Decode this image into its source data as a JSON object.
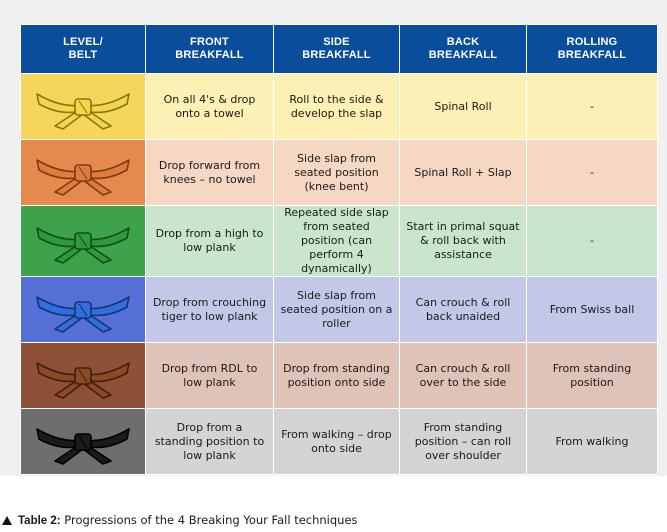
{
  "table": {
    "headers": [
      "LEVEL/\nBELT",
      "FRONT\nBREAKFALL",
      "SIDE\nBREAKFALL",
      "BACK\nBREAKFALL",
      "ROLLING\nBREAKFALL"
    ],
    "rows": [
      {
        "belt": {
          "name": "yellow-belt-icon",
          "fill": "#f2d74a",
          "stroke": "#8a7417"
        },
        "bg": "#fdf0b4",
        "cells": [
          "On all 4's & drop onto a towel",
          "Roll to the side & develop the slap",
          "Spinal Roll",
          "-"
        ]
      },
      {
        "belt": {
          "name": "orange-belt-icon",
          "fill": "#e27a3a",
          "stroke": "#7a3c15"
        },
        "bg": "#f6d7c2",
        "cells": [
          "Drop forward from knees – no towel",
          "Side slap from seated position (knee bent)",
          "Spinal Roll + Slap",
          "-"
        ]
      },
      {
        "belt": {
          "name": "green-belt-icon",
          "fill": "#2f9a3a",
          "stroke": "#144d1a"
        },
        "bg": "#c9e6cc",
        "cells": [
          "Drop from a high to low plank",
          "Repeated side slap from seated position (can perform 4 dynamically)",
          "Start in primal squat & roll back with assistance",
          "-"
        ]
      },
      {
        "belt": {
          "name": "blue-belt-icon",
          "fill": "#2f6fe0",
          "stroke": "#17326e"
        },
        "bg": "#c3c8e8",
        "cells": [
          "Drop from crouching tiger to low plank",
          "Side slap from seated position on a roller",
          "Can crouch & roll back unaided",
          "From Swiss ball"
        ]
      },
      {
        "belt": {
          "name": "brown-belt-icon",
          "fill": "#8b4a23",
          "stroke": "#3f1f0c"
        },
        "bg": "#dfc3b8",
        "cells": [
          "Drop from RDL to low plank",
          "Drop from standing position onto side",
          "Can crouch & roll over to the side",
          "From standing position"
        ]
      },
      {
        "belt": {
          "name": "black-belt-icon",
          "fill": "#1b1b1b",
          "stroke": "#000000"
        },
        "bg": "#d4d4d4",
        "cells": [
          "Drop from a standing position to low plank",
          "From walking – drop onto side",
          "From standing position – can roll over shoulder",
          "From walking"
        ]
      }
    ]
  },
  "colors": {
    "header_bg": "#0a4e9b",
    "belt_cell_bg": [
      "#f6d65a",
      "#e5894e",
      "#3ea24a",
      "#5470d6",
      "#8e5137",
      "#6e6e6e"
    ]
  },
  "caption": {
    "label": "Table 2:",
    "text": " Progressions of the 4 Breaking Your Fall techniques"
  }
}
